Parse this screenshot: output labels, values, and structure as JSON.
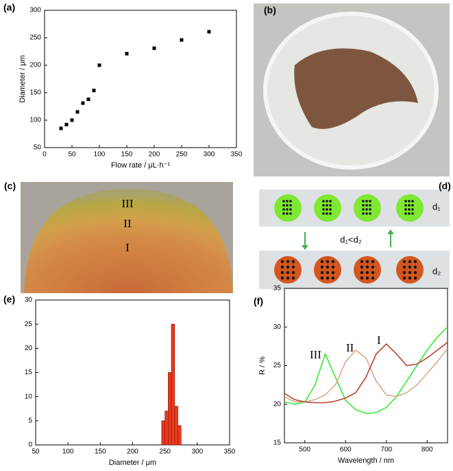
{
  "chart_data": [
    {
      "type": "scatter",
      "label": "(a)",
      "xlabel": "Flow rate / μL·h⁻¹",
      "ylabel": "Diameter / μm",
      "x": [
        30,
        40,
        50,
        60,
        70,
        80,
        90,
        100,
        150,
        200,
        250,
        300
      ],
      "values": [
        85,
        92,
        100,
        115,
        131,
        138,
        154,
        200,
        221,
        231,
        246,
        261
      ],
      "color": "#000000",
      "xlim": [
        0,
        350
      ],
      "xticks": [
        0,
        50,
        100,
        150,
        200,
        250,
        300,
        350
      ],
      "ylim": [
        50,
        300
      ],
      "yticks": [
        50,
        100,
        150,
        200,
        250,
        300
      ]
    },
    {
      "type": "histogram",
      "label": "(e)",
      "xlabel": "Diameter / μm",
      "bins": [
        245,
        250,
        255,
        260,
        265,
        270,
        275
      ],
      "values": [
        5,
        7,
        15,
        25,
        8,
        4
      ],
      "color": "#f03a1c",
      "xlim": [
        50,
        350
      ],
      "xticks": [
        50,
        100,
        150,
        200,
        250,
        300,
        350
      ],
      "ylim": [
        0,
        30
      ],
      "yticks": [
        0,
        5,
        10,
        15,
        20,
        25,
        30
      ]
    },
    {
      "type": "line",
      "label": "(f)",
      "xlabel": "Wavelength / nm",
      "ylabel": "R / %",
      "x": [
        450,
        475,
        500,
        525,
        550,
        575,
        600,
        625,
        650,
        675,
        700,
        725,
        750,
        775,
        800,
        825,
        850
      ],
      "series": [
        {
          "color": "#38e838",
          "values": [
            20.3,
            20.0,
            20.3,
            22.5,
            26.5,
            23.5,
            20.5,
            19.3,
            18.8,
            18.9,
            19.6,
            21,
            23,
            25,
            27,
            28.7,
            30
          ]
        },
        {
          "color": "#d9a98a",
          "values": [
            21,
            20.3,
            20.3,
            20.6,
            21.2,
            22.5,
            25.5,
            27,
            26,
            23,
            21.2,
            21,
            21.5,
            22.5,
            24,
            25.5,
            27.2
          ]
        },
        {
          "color": "#b8402a",
          "values": [
            21.4,
            20.6,
            20.3,
            20.2,
            20.2,
            20.4,
            20.8,
            21.5,
            23.5,
            26.5,
            27.8,
            26.5,
            25,
            25.2,
            26,
            27,
            28
          ]
        }
      ],
      "annotations": [
        "III",
        "II",
        "I"
      ],
      "xlim": [
        450,
        850
      ],
      "xticks": [
        500,
        600,
        700,
        800
      ],
      "ylim": [
        15,
        35
      ],
      "yticks": [
        15,
        20,
        25,
        30,
        35
      ]
    }
  ],
  "panels": {
    "b": {
      "label": "(b)"
    },
    "c": {
      "label": "(c)",
      "zones": [
        "III",
        "II",
        "I"
      ]
    },
    "d": {
      "label": "(d)",
      "texts": [
        "d₁",
        "d₁<d₂",
        "d₂"
      ]
    }
  }
}
